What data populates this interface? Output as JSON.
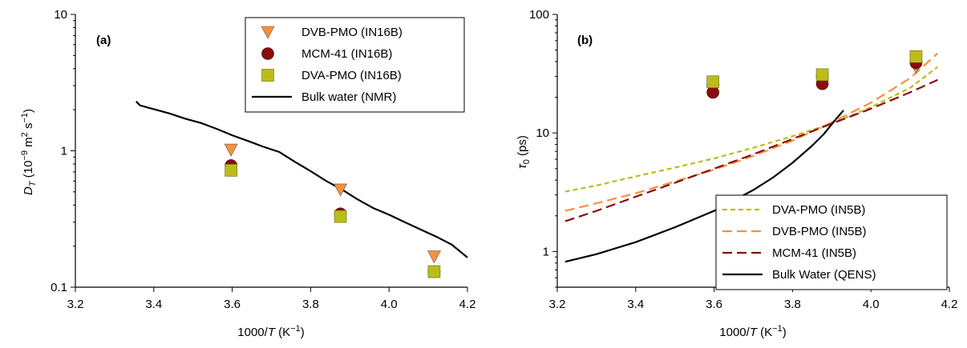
{
  "chart_data": [
    {
      "type": "scatter",
      "panel_label": "(a)",
      "xlabel": {
        "pre": "1000/",
        "ital": "T",
        "post": " (K",
        "sup": "−1",
        "end": ")"
      },
      "ylabel": {
        "sym": "D",
        "sub": "T",
        "pre": " (10",
        "sup1": "−9",
        "mid": " m",
        "sup2": "2",
        "mid2": " s",
        "sup3": "−1",
        "end": ")"
      },
      "xlim": [
        3.2,
        4.2
      ],
      "ylim": [
        0.1,
        10
      ],
      "yscale": "log",
      "xticks": [
        "3.2",
        "3.4",
        "3.6",
        "3.8",
        "4.0",
        "4.2"
      ],
      "yticks": [
        "0.1",
        "1",
        "10"
      ],
      "legend_position": "top-right",
      "series": [
        {
          "name": "DVB-PMO (IN16B)",
          "marker": "triangle-down",
          "color": "#f7913d",
          "points": [
            [
              3.597,
              1.02
            ],
            [
              3.876,
              0.52
            ],
            [
              4.115,
              0.168
            ]
          ]
        },
        {
          "name": "MCM-41 (IN16B)",
          "marker": "circle",
          "color": "#8b0c0c",
          "points": [
            [
              3.597,
              0.78
            ],
            [
              3.876,
              0.345
            ],
            [
              4.115,
              0.13
            ]
          ]
        },
        {
          "name": "DVA-PMO (IN16B)",
          "marker": "square",
          "color": "#bcbc1c",
          "points": [
            [
              3.597,
              0.72
            ],
            [
              3.876,
              0.33
            ],
            [
              4.115,
              0.13
            ]
          ]
        },
        {
          "name": "Bulk water (NMR)",
          "marker": "line",
          "color": "#000000",
          "points": [
            [
              3.355,
              2.3
            ],
            [
              3.365,
              2.15
            ],
            [
              3.4,
              2.02
            ],
            [
              3.44,
              1.88
            ],
            [
              3.48,
              1.72
            ],
            [
              3.52,
              1.6
            ],
            [
              3.56,
              1.45
            ],
            [
              3.6,
              1.3
            ],
            [
              3.64,
              1.18
            ],
            [
              3.68,
              1.07
            ],
            [
              3.72,
              0.98
            ],
            [
              3.76,
              0.83
            ],
            [
              3.8,
              0.71
            ],
            [
              3.84,
              0.6
            ],
            [
              3.88,
              0.52
            ],
            [
              3.92,
              0.44
            ],
            [
              3.96,
              0.38
            ],
            [
              4.0,
              0.34
            ],
            [
              4.04,
              0.3
            ],
            [
              4.08,
              0.265
            ],
            [
              4.12,
              0.235
            ],
            [
              4.16,
              0.205
            ],
            [
              4.2,
              0.165
            ]
          ]
        }
      ]
    },
    {
      "type": "line",
      "panel_label": "(b)",
      "xlabel": {
        "pre": "1000/",
        "ital": "T",
        "post": " (K",
        "sup": "−1",
        "end": ")"
      },
      "ylabel": {
        "sym": "τ",
        "sub": "0",
        "pre": " (ps)"
      },
      "xlim": [
        3.2,
        4.2
      ],
      "ylim": [
        0.5,
        100
      ],
      "yscale": "log",
      "xticks": [
        "3.2",
        "3.4",
        "3.6",
        "3.8",
        "4.0",
        "4.2"
      ],
      "yticks": [
        "1",
        "10",
        "100"
      ],
      "legend_position": "bottom-right",
      "series": [
        {
          "name": "DVA-PMO (IN5B)",
          "marker": "line",
          "dash": "short",
          "color": "#bcbc1c",
          "points": [
            [
              3.22,
              3.2
            ],
            [
              3.3,
              3.6
            ],
            [
              3.4,
              4.3
            ],
            [
              3.5,
              5.1
            ],
            [
              3.6,
              6.1
            ],
            [
              3.7,
              7.5
            ],
            [
              3.8,
              9.4
            ],
            [
              3.9,
              12.0
            ],
            [
              4.0,
              16.5
            ],
            [
              4.1,
              24.0
            ],
            [
              4.17,
              36.0
            ]
          ]
        },
        {
          "name": "DVB-PMO (IN5B)",
          "marker": "line",
          "dash": "long",
          "color": "#f7913d",
          "points": [
            [
              3.22,
              2.2
            ],
            [
              3.3,
              2.55
            ],
            [
              3.4,
              3.1
            ],
            [
              3.5,
              3.9
            ],
            [
              3.6,
              4.9
            ],
            [
              3.7,
              6.4
            ],
            [
              3.8,
              8.6
            ],
            [
              3.9,
              12.3
            ],
            [
              4.0,
              18.0
            ],
            [
              4.1,
              29.0
            ],
            [
              4.17,
              47.0
            ]
          ]
        },
        {
          "name": "MCM-41 (IN5B)",
          "marker": "line",
          "dash": "long",
          "color": "#8b0c0c",
          "points": [
            [
              3.22,
              1.8
            ],
            [
              3.3,
              2.2
            ],
            [
              3.4,
              2.9
            ],
            [
              3.5,
              3.8
            ],
            [
              3.6,
              5.0
            ],
            [
              3.7,
              6.6
            ],
            [
              3.8,
              8.9
            ],
            [
              3.9,
              12.0
            ],
            [
              4.0,
              16.0
            ],
            [
              4.1,
              22.0
            ],
            [
              4.17,
              28.0
            ]
          ]
        },
        {
          "name": "Bulk Water (QENS)",
          "marker": "line",
          "dash": "solid",
          "color": "#000000",
          "points": [
            [
              3.22,
              0.82
            ],
            [
              3.3,
              0.95
            ],
            [
              3.4,
              1.2
            ],
            [
              3.5,
              1.6
            ],
            [
              3.6,
              2.2
            ],
            [
              3.7,
              3.3
            ],
            [
              3.75,
              4.2
            ],
            [
              3.8,
              5.6
            ],
            [
              3.85,
              7.8
            ],
            [
              3.88,
              9.8
            ],
            [
              3.91,
              13.0
            ],
            [
              3.93,
              15.5
            ]
          ]
        },
        {
          "name": "DVB-PMO (IN16B)",
          "marker": "triangle-down",
          "color": "#f7913d",
          "in_legend": false,
          "points": [
            [
              3.597,
              23.0
            ],
            [
              3.876,
              27.0
            ],
            [
              4.115,
              36.0
            ]
          ]
        },
        {
          "name": "MCM-41 (IN16B)",
          "marker": "circle",
          "color": "#8b0c0c",
          "in_legend": false,
          "points": [
            [
              3.597,
              22.0
            ],
            [
              3.876,
              26.0
            ],
            [
              4.115,
              39.0
            ]
          ]
        },
        {
          "name": "DVA-PMO (IN16B)",
          "marker": "square",
          "color": "#bcbc1c",
          "in_legend": false,
          "points": [
            [
              3.597,
              27.0
            ],
            [
              3.876,
              31.0
            ],
            [
              4.115,
              44.0
            ]
          ]
        }
      ]
    }
  ]
}
